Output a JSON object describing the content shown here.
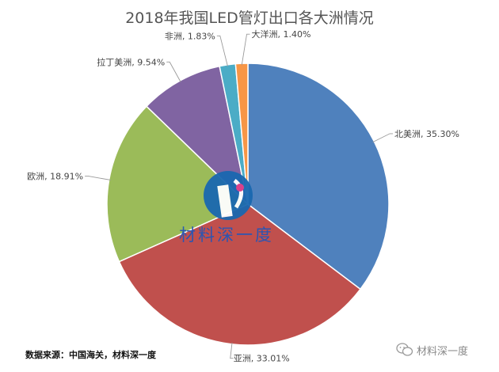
{
  "chart_data": {
    "type": "pie",
    "title": "2018年我国LED管灯出口各大洲情况",
    "slices": [
      {
        "label": "北美洲",
        "value": 35.3,
        "display": "北美洲, 35.30%",
        "color": "#4f81bd"
      },
      {
        "label": "亚洲",
        "value": 33.01,
        "display": "亚洲, 33.01%",
        "color": "#c0504d"
      },
      {
        "label": "欧洲",
        "value": 18.91,
        "display": "欧洲, 18.91%",
        "color": "#9bbb59"
      },
      {
        "label": "拉丁美洲",
        "value": 9.54,
        "display": "拉丁美洲, 9.54%",
        "color": "#8064a2"
      },
      {
        "label": "非洲",
        "value": 1.83,
        "display": "非洲, 1.83%",
        "color": "#4bacc6"
      },
      {
        "label": "大洋洲",
        "value": 1.4,
        "display": "大洋洲, 1.40%",
        "color": "#f79646"
      }
    ]
  },
  "watermark": {
    "text": "材料深一度"
  },
  "source": "数据来源：中国海关，材料深一度",
  "wechat_badge": {
    "text": "材料深一度",
    "icon": "wechat-icon"
  }
}
